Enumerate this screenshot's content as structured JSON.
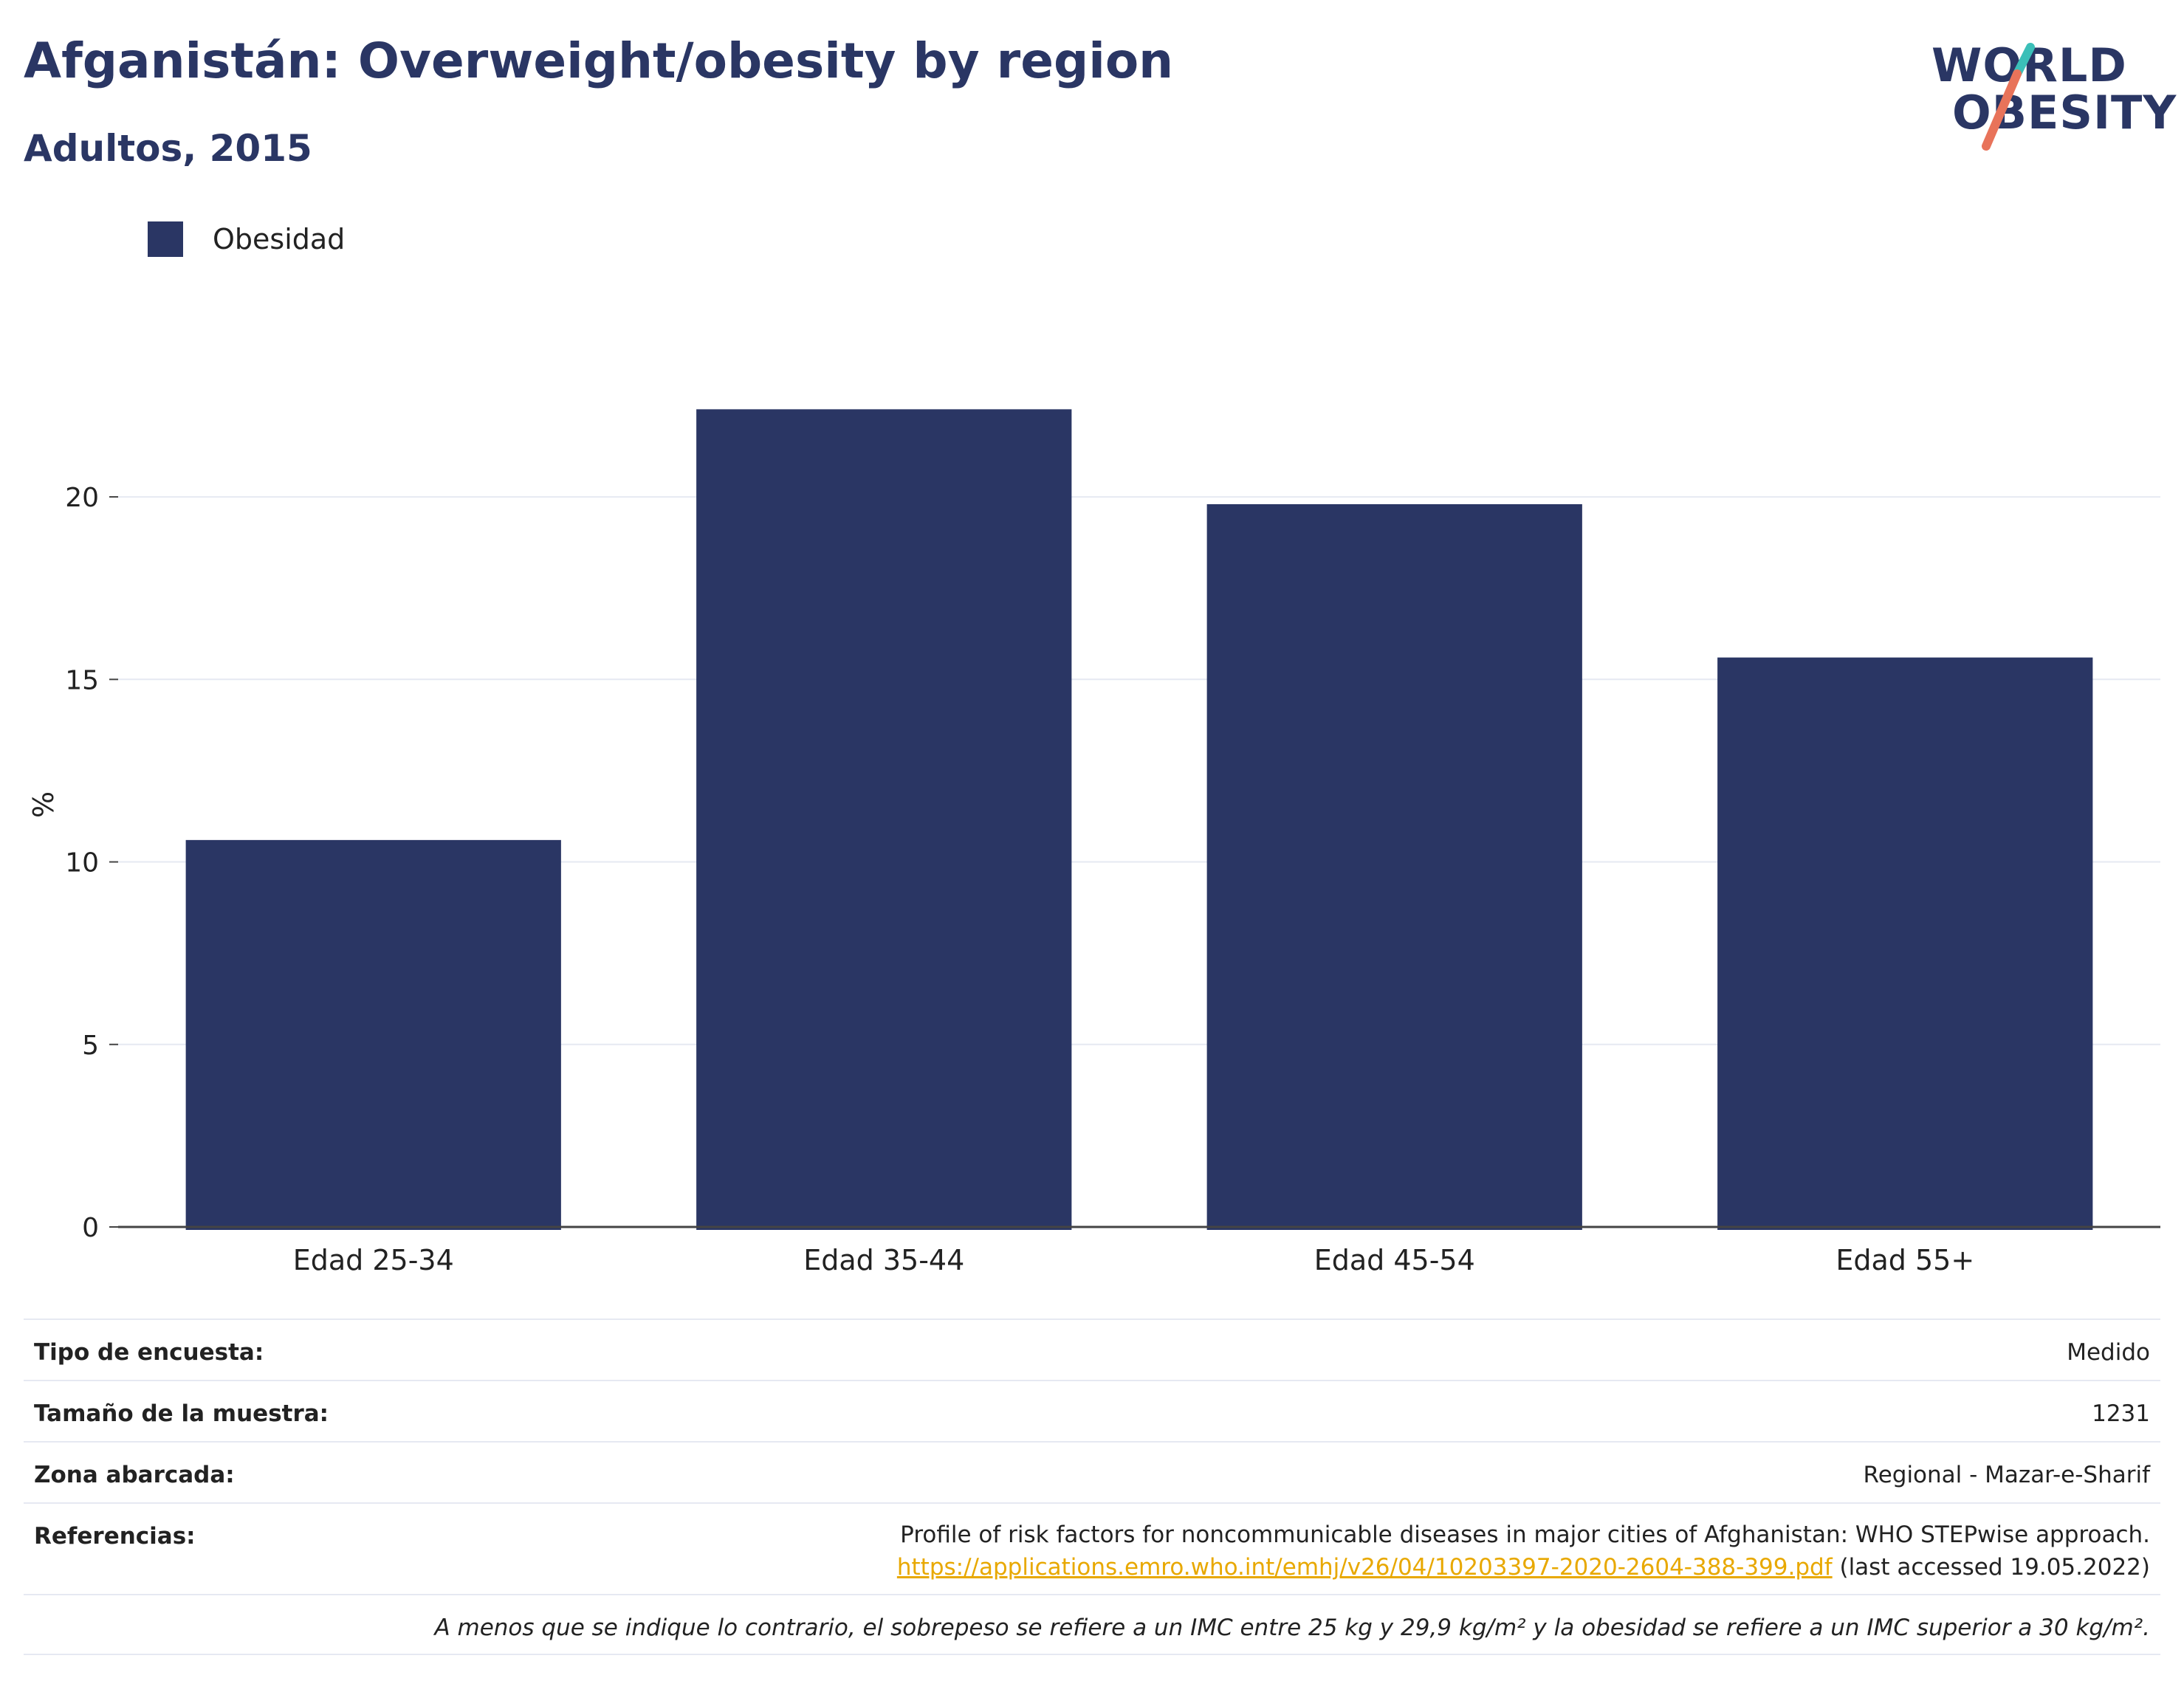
{
  "header": {
    "title": "Afganistán: Overweight/obesity by region",
    "subtitle": "Adultos, 2015"
  },
  "logo": {
    "line1": "WORLD",
    "line2": "OBESITY",
    "accent_teal": "#3bbfb8",
    "accent_coral": "#e8735a"
  },
  "colors": {
    "bar": "#2a3664",
    "grid": "#e6e9f2",
    "axis": "#444444"
  },
  "chart_data": {
    "type": "bar",
    "ylabel": "%",
    "xlabel": "",
    "ylim": [
      0,
      23.5
    ],
    "yticks": [
      0,
      5,
      10,
      15,
      20
    ],
    "grid": true,
    "legend_position": "top-left",
    "categories": [
      "Edad 25-34",
      "Edad 35-44",
      "Edad 45-54",
      "Edad 55+"
    ],
    "series": [
      {
        "name": "Obesidad",
        "values": [
          10.6,
          22.4,
          19.8,
          15.6
        ]
      }
    ]
  },
  "info": {
    "survey_type_label": "Tipo de encuesta:",
    "survey_type_value": "Medido",
    "sample_size_label": "Tamaño de la muestra:",
    "sample_size_value": "1231",
    "area_label": "Zona abarcada:",
    "area_value": "Regional - Mazar-e-Sharif",
    "references_label": "Referencias:",
    "references_text": "Profile of risk factors for noncommunicable diseases in major cities of Afghanistan: WHO STEPwise approach.",
    "references_link": "https://applications.emro.who.int/emhj/v26/04/10203397-2020-2604-388-399.pdf",
    "references_accessed": " (last accessed 19.05.2022)",
    "note": "A menos que se indique lo contrario, el sobrepeso se refiere a un IMC entre 25 kg y 29,9 kg/m² y la obesidad se refiere a un IMC superior a 30 kg/m²."
  }
}
